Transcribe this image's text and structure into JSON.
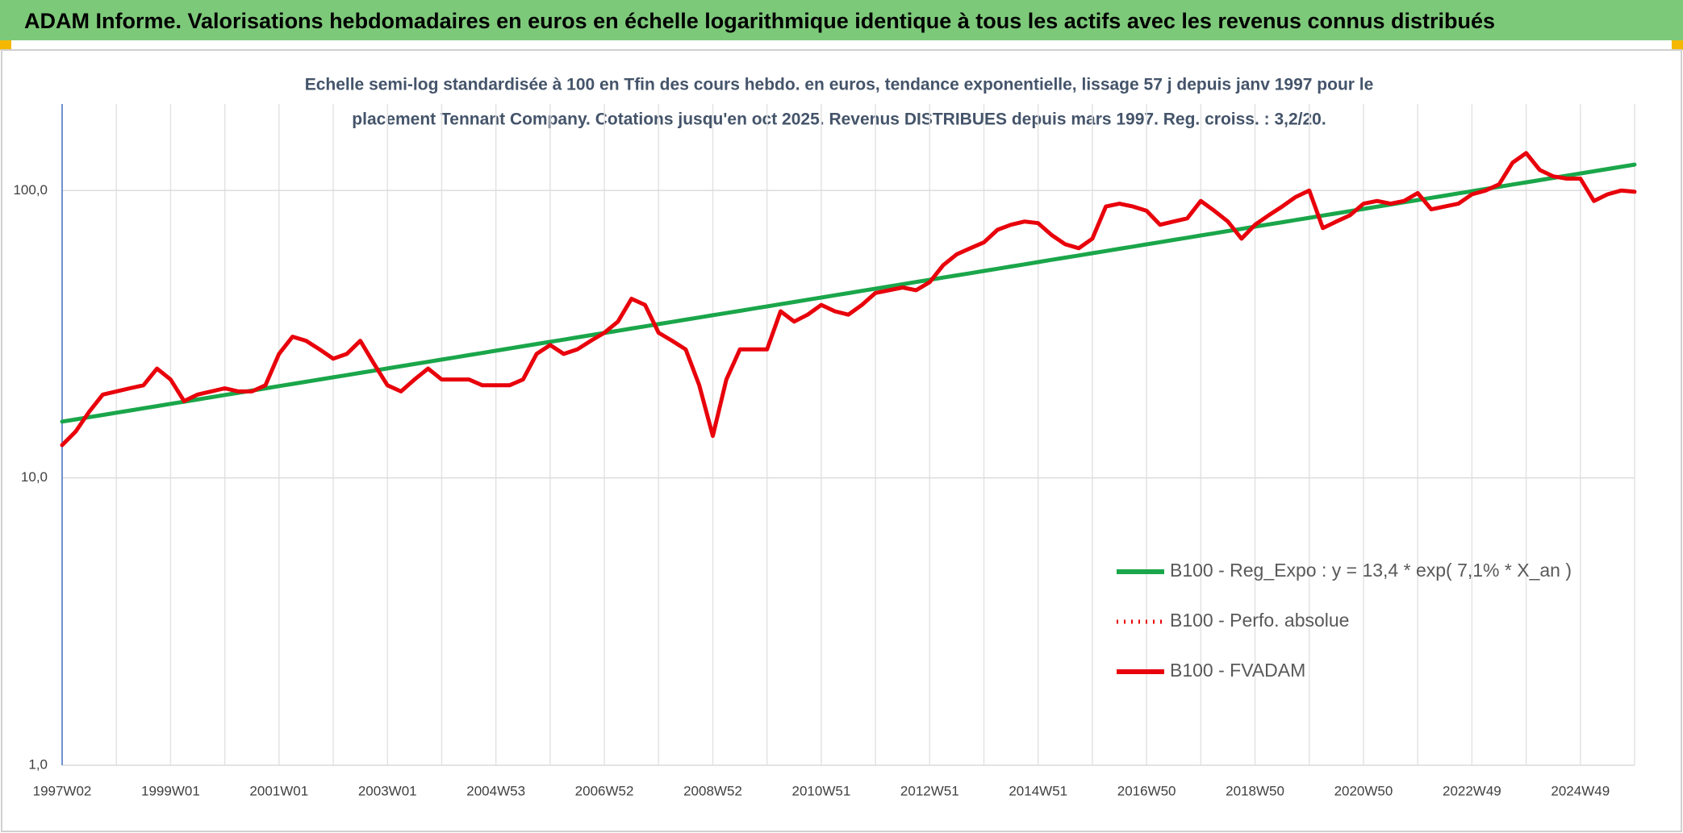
{
  "chart_data": {
    "type": "line",
    "title": "ADAM Informe. Valorisations hebdomadaires en euros en échelle logarithmique identique à tous les actifs avec les revenus connus distribués",
    "subtitle": [
      "Echelle semi-log standardisée à 100 en Tfin des cours hebdo. en euros, tendance exponentielle, lissage 57 j depuis janv 1997 pour le",
      "placement Tennant Company. Cotations jusqu'en oct 2025. Revenus DISTRIBUES depuis mars 1997. Reg. croiss. : 3,2/20."
    ],
    "categories": [
      "1997W02",
      null,
      null,
      null,
      null,
      null,
      null,
      null,
      "1999W01",
      null,
      null,
      null,
      null,
      null,
      null,
      null,
      "2001W01",
      null,
      null,
      null,
      null,
      null,
      null,
      null,
      "2003W01",
      null,
      null,
      null,
      null,
      null,
      null,
      null,
      "2004W53",
      null,
      null,
      null,
      null,
      null,
      null,
      null,
      "2006W52",
      null,
      null,
      null,
      null,
      null,
      null,
      null,
      "2008W52",
      null,
      null,
      null,
      null,
      null,
      null,
      null,
      "2010W51",
      null,
      null,
      null,
      null,
      null,
      null,
      null,
      "2012W51",
      null,
      null,
      null,
      null,
      null,
      null,
      null,
      "2014W51",
      null,
      null,
      null,
      null,
      null,
      null,
      null,
      "2016W50",
      null,
      null,
      null,
      null,
      null,
      null,
      null,
      "2018W50",
      null,
      null,
      null,
      null,
      null,
      null,
      null,
      "2020W50",
      null,
      null,
      null,
      null,
      null,
      null,
      null,
      "2022W49",
      null,
      null,
      null,
      null,
      null,
      null,
      null,
      "2024W49",
      null,
      null,
      null,
      null
    ],
    "series": [
      {
        "name": "B100 - Reg_Expo : y = 13,4 * exp( 7,1% *  X_an )",
        "color": "#1aa64a",
        "style": "solid",
        "values": [
          15.7,
          15.98,
          16.27,
          16.56,
          16.86,
          17.16,
          17.47,
          17.78,
          18.1,
          18.42,
          18.75,
          19.09,
          19.43,
          19.78,
          20.13,
          20.49,
          20.86,
          21.23,
          21.61,
          22.0,
          22.39,
          22.79,
          23.2,
          23.61,
          24.04,
          24.47,
          24.91,
          25.35,
          25.81,
          26.27,
          26.74,
          27.22,
          27.71,
          28.21,
          28.71,
          29.23,
          29.75,
          30.28,
          30.82,
          31.38,
          31.94,
          32.51,
          33.09,
          33.69,
          34.29,
          34.9,
          35.53,
          36.17,
          36.81,
          37.47,
          38.14,
          38.82,
          39.52,
          40.23,
          40.95,
          41.68,
          42.43,
          43.19,
          43.96,
          44.75,
          45.55,
          46.37,
          47.19,
          48.04,
          48.9,
          49.78,
          50.67,
          51.57,
          52.5,
          53.44,
          54.4,
          55.37,
          56.37,
          57.38,
          58.41,
          59.45,
          60.51,
          61.59,
          62.69,
          63.82,
          64.97,
          66.13,
          67.32,
          68.52,
          69.75,
          71.0,
          72.27,
          73.57,
          74.88,
          76.22,
          77.58,
          78.98,
          80.39,
          81.83,
          83.29,
          84.79,
          86.31,
          87.86,
          89.43,
          91.03,
          92.66,
          94.32,
          96.01,
          97.73,
          99.48,
          101.26,
          103.07,
          104.92,
          106.8,
          108.71,
          110.66,
          112.64,
          114.66,
          116.71,
          118.8,
          120.93,
          123.1
        ]
      },
      {
        "name": "B100 - Perfo. absolue",
        "color": "#e8000b",
        "style": "dotted",
        "values": [
          13,
          14.5,
          17,
          19.5,
          20,
          20.5,
          21,
          24,
          22,
          18.5,
          19.5,
          20,
          20.5,
          20,
          20,
          21,
          27,
          31,
          30,
          28,
          26,
          27,
          30,
          25,
          21,
          20,
          22,
          24,
          22,
          22,
          22,
          21,
          21,
          21,
          22,
          27,
          29,
          27,
          28,
          30,
          32,
          35,
          42,
          40,
          32,
          30,
          28,
          21,
          14,
          22,
          28,
          28,
          28,
          38,
          35,
          37,
          40,
          38,
          37,
          40,
          44,
          45,
          46,
          45,
          48,
          55,
          60,
          63,
          66,
          73,
          76,
          78,
          77,
          70,
          65,
          63,
          68,
          88,
          90,
          88,
          85,
          76,
          78,
          80,
          92,
          85,
          78,
          68,
          76,
          82,
          88,
          95,
          100,
          74,
          78,
          82,
          90,
          92,
          90,
          92,
          98,
          86,
          88,
          90,
          97,
          100,
          105,
          125,
          135,
          118,
          112,
          110,
          110,
          92,
          97,
          100,
          99
        ]
      },
      {
        "name": "B100 - FVADAM",
        "color": "#e8000b",
        "style": "solid",
        "values": [
          13,
          14.5,
          17,
          19.5,
          20,
          20.5,
          21,
          24,
          22,
          18.5,
          19.5,
          20,
          20.5,
          20,
          20,
          21,
          27,
          31,
          30,
          28,
          26,
          27,
          30,
          25,
          21,
          20,
          22,
          24,
          22,
          22,
          22,
          21,
          21,
          21,
          22,
          27,
          29,
          27,
          28,
          30,
          32,
          35,
          42,
          40,
          32,
          30,
          28,
          21,
          14,
          22,
          28,
          28,
          28,
          38,
          35,
          37,
          40,
          38,
          37,
          40,
          44,
          45,
          46,
          45,
          48,
          55,
          60,
          63,
          66,
          73,
          76,
          78,
          77,
          70,
          65,
          63,
          68,
          88,
          90,
          88,
          85,
          76,
          78,
          80,
          92,
          85,
          78,
          68,
          76,
          82,
          88,
          95,
          100,
          74,
          78,
          82,
          90,
          92,
          90,
          92,
          98,
          86,
          88,
          90,
          97,
          100,
          105,
          125,
          135,
          118,
          112,
          110,
          110,
          92,
          97,
          100,
          99
        ]
      }
    ],
    "ylim": [
      1,
      200
    ],
    "yticks": [
      {
        "value": 1,
        "label": "1,0"
      },
      {
        "value": 10,
        "label": "10,0"
      },
      {
        "value": 100,
        "label": "100,0"
      }
    ],
    "log_scale": true,
    "grid": true,
    "legend": "lower right"
  }
}
